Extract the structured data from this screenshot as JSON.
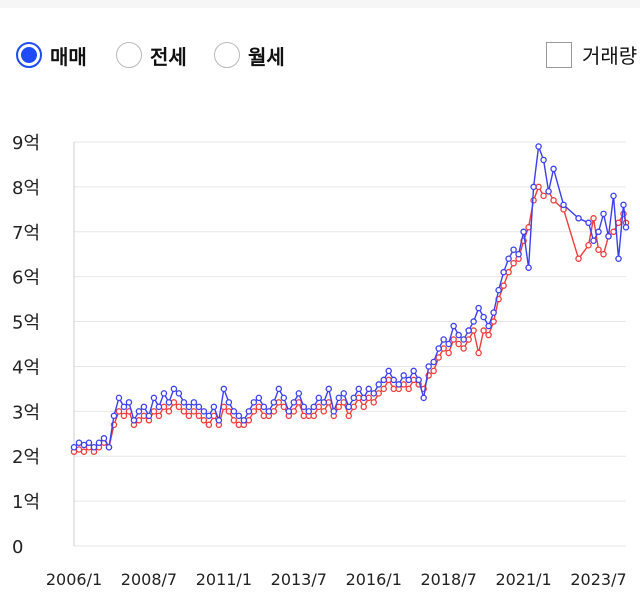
{
  "controls": {
    "radios": [
      {
        "label": "매매",
        "checked": true
      },
      {
        "label": "전세",
        "checked": false
      },
      {
        "label": "월세",
        "checked": false
      }
    ],
    "checkbox": {
      "label": "거래량",
      "checked": false
    }
  },
  "colors": {
    "accent": "#1e4bf5",
    "series_blue": "#3b3ff0",
    "series_red": "#f03b3b",
    "grid": "#e6e6e6"
  },
  "chart_data": {
    "type": "line",
    "y_ticks": [
      "0",
      "1억",
      "2억",
      "3억",
      "4억",
      "5억",
      "6억",
      "7억",
      "8억",
      "9억"
    ],
    "x_ticks": [
      "2006/1",
      "2008/7",
      "2011/1",
      "2013/7",
      "2016/1",
      "2018/7",
      "2021/1",
      "2023/7"
    ],
    "ylim": [
      0,
      9
    ],
    "xlim": [
      "2006/1",
      "2024/6"
    ],
    "grid": true,
    "series": [
      {
        "color": "#3b3ff0",
        "points": [
          [
            "2006/1",
            2.2
          ],
          [
            "2006/3",
            2.3
          ],
          [
            "2006/5",
            2.25
          ],
          [
            "2006/7",
            2.3
          ],
          [
            "2006/9",
            2.2
          ],
          [
            "2006/11",
            2.3
          ],
          [
            "2007/1",
            2.4
          ],
          [
            "2007/3",
            2.2
          ],
          [
            "2007/5",
            2.9
          ],
          [
            "2007/7",
            3.3
          ],
          [
            "2007/9",
            3.1
          ],
          [
            "2007/11",
            3.2
          ],
          [
            "2008/1",
            2.8
          ],
          [
            "2008/3",
            3.0
          ],
          [
            "2008/5",
            3.1
          ],
          [
            "2008/7",
            2.9
          ],
          [
            "2008/9",
            3.3
          ],
          [
            "2008/11",
            3.1
          ],
          [
            "2009/1",
            3.4
          ],
          [
            "2009/3",
            3.2
          ],
          [
            "2009/5",
            3.5
          ],
          [
            "2009/7",
            3.4
          ],
          [
            "2009/9",
            3.2
          ],
          [
            "2009/11",
            3.1
          ],
          [
            "2010/1",
            3.2
          ],
          [
            "2010/3",
            3.1
          ],
          [
            "2010/5",
            3.0
          ],
          [
            "2010/7",
            2.9
          ],
          [
            "2010/9",
            3.1
          ],
          [
            "2010/11",
            2.8
          ],
          [
            "2011/1",
            3.5
          ],
          [
            "2011/3",
            3.2
          ],
          [
            "2011/5",
            3.0
          ],
          [
            "2011/7",
            2.9
          ],
          [
            "2011/9",
            2.8
          ],
          [
            "2011/11",
            3.0
          ],
          [
            "2012/1",
            3.2
          ],
          [
            "2012/3",
            3.3
          ],
          [
            "2012/5",
            3.1
          ],
          [
            "2012/7",
            3.0
          ],
          [
            "2012/9",
            3.2
          ],
          [
            "2012/11",
            3.5
          ],
          [
            "2013/1",
            3.3
          ],
          [
            "2013/3",
            3.0
          ],
          [
            "2013/5",
            3.2
          ],
          [
            "2013/7",
            3.4
          ],
          [
            "2013/9",
            3.1
          ],
          [
            "2013/11",
            3.0
          ],
          [
            "2014/1",
            3.1
          ],
          [
            "2014/3",
            3.3
          ],
          [
            "2014/5",
            3.2
          ],
          [
            "2014/7",
            3.5
          ],
          [
            "2014/9",
            3.0
          ],
          [
            "2014/11",
            3.3
          ],
          [
            "2015/1",
            3.4
          ],
          [
            "2015/3",
            3.1
          ],
          [
            "2015/5",
            3.3
          ],
          [
            "2015/7",
            3.5
          ],
          [
            "2015/9",
            3.3
          ],
          [
            "2015/11",
            3.5
          ],
          [
            "2016/1",
            3.4
          ],
          [
            "2016/3",
            3.6
          ],
          [
            "2016/5",
            3.7
          ],
          [
            "2016/7",
            3.9
          ],
          [
            "2016/9",
            3.7
          ],
          [
            "2016/11",
            3.6
          ],
          [
            "2017/1",
            3.8
          ],
          [
            "2017/3",
            3.7
          ],
          [
            "2017/5",
            3.9
          ],
          [
            "2017/7",
            3.7
          ],
          [
            "2017/9",
            3.3
          ],
          [
            "2017/11",
            4.0
          ],
          [
            "2018/1",
            4.1
          ],
          [
            "2018/3",
            4.4
          ],
          [
            "2018/5",
            4.6
          ],
          [
            "2018/7",
            4.5
          ],
          [
            "2018/9",
            4.9
          ],
          [
            "2018/11",
            4.7
          ],
          [
            "2019/1",
            4.6
          ],
          [
            "2019/3",
            4.8
          ],
          [
            "2019/5",
            5.0
          ],
          [
            "2019/7",
            5.3
          ],
          [
            "2019/9",
            5.1
          ],
          [
            "2019/11",
            4.9
          ],
          [
            "2020/1",
            5.2
          ],
          [
            "2020/3",
            5.7
          ],
          [
            "2020/5",
            6.1
          ],
          [
            "2020/7",
            6.4
          ],
          [
            "2020/9",
            6.6
          ],
          [
            "2020/11",
            6.5
          ],
          [
            "2021/1",
            7.0
          ],
          [
            "2021/3",
            6.2
          ],
          [
            "2021/5",
            8.0
          ],
          [
            "2021/7",
            8.9
          ],
          [
            "2021/9",
            8.6
          ],
          [
            "2021/11",
            7.9
          ],
          [
            "2022/1",
            8.4
          ],
          [
            "2022/5",
            7.6
          ],
          [
            "2022/11",
            7.3
          ],
          [
            "2023/3",
            7.2
          ],
          [
            "2023/5",
            6.8
          ],
          [
            "2023/7",
            7.0
          ],
          [
            "2023/9",
            7.4
          ],
          [
            "2023/11",
            6.9
          ],
          [
            "2024/1",
            7.8
          ],
          [
            "2024/3",
            6.4
          ],
          [
            "2024/5",
            7.6
          ],
          [
            "2024/6",
            7.1
          ]
        ]
      },
      {
        "color": "#f03b3b",
        "points": [
          [
            "2006/1",
            2.1
          ],
          [
            "2006/3",
            2.15
          ],
          [
            "2006/5",
            2.1
          ],
          [
            "2006/7",
            2.2
          ],
          [
            "2006/9",
            2.1
          ],
          [
            "2006/11",
            2.2
          ],
          [
            "2007/1",
            2.3
          ],
          [
            "2007/3",
            2.2
          ],
          [
            "2007/5",
            2.7
          ],
          [
            "2007/7",
            3.0
          ],
          [
            "2007/9",
            2.9
          ],
          [
            "2007/11",
            3.0
          ],
          [
            "2008/1",
            2.7
          ],
          [
            "2008/3",
            2.8
          ],
          [
            "2008/5",
            2.9
          ],
          [
            "2008/7",
            2.8
          ],
          [
            "2008/9",
            3.0
          ],
          [
            "2008/11",
            2.9
          ],
          [
            "2009/1",
            3.1
          ],
          [
            "2009/3",
            3.0
          ],
          [
            "2009/5",
            3.2
          ],
          [
            "2009/7",
            3.1
          ],
          [
            "2009/9",
            3.0
          ],
          [
            "2009/11",
            2.9
          ],
          [
            "2010/1",
            3.0
          ],
          [
            "2010/3",
            2.9
          ],
          [
            "2010/5",
            2.8
          ],
          [
            "2010/7",
            2.7
          ],
          [
            "2010/9",
            2.9
          ],
          [
            "2010/11",
            2.7
          ],
          [
            "2011/1",
            3.1
          ],
          [
            "2011/3",
            3.0
          ],
          [
            "2011/5",
            2.8
          ],
          [
            "2011/7",
            2.7
          ],
          [
            "2011/9",
            2.7
          ],
          [
            "2011/11",
            2.8
          ],
          [
            "2012/1",
            3.0
          ],
          [
            "2012/3",
            3.1
          ],
          [
            "2012/5",
            2.9
          ],
          [
            "2012/7",
            2.9
          ],
          [
            "2012/9",
            3.0
          ],
          [
            "2012/11",
            3.2
          ],
          [
            "2013/1",
            3.1
          ],
          [
            "2013/3",
            2.9
          ],
          [
            "2013/5",
            3.0
          ],
          [
            "2013/7",
            3.2
          ],
          [
            "2013/9",
            2.9
          ],
          [
            "2013/11",
            2.9
          ],
          [
            "2014/1",
            2.9
          ],
          [
            "2014/3",
            3.1
          ],
          [
            "2014/5",
            3.0
          ],
          [
            "2014/7",
            3.2
          ],
          [
            "2014/9",
            2.9
          ],
          [
            "2014/11",
            3.1
          ],
          [
            "2015/1",
            3.2
          ],
          [
            "2015/3",
            2.9
          ],
          [
            "2015/5",
            3.1
          ],
          [
            "2015/7",
            3.3
          ],
          [
            "2015/9",
            3.1
          ],
          [
            "2015/11",
            3.3
          ],
          [
            "2016/1",
            3.2
          ],
          [
            "2016/3",
            3.4
          ],
          [
            "2016/5",
            3.5
          ],
          [
            "2016/7",
            3.7
          ],
          [
            "2016/9",
            3.5
          ],
          [
            "2016/11",
            3.5
          ],
          [
            "2017/1",
            3.6
          ],
          [
            "2017/3",
            3.5
          ],
          [
            "2017/5",
            3.7
          ],
          [
            "2017/7",
            3.6
          ],
          [
            "2017/9",
            3.5
          ],
          [
            "2017/11",
            3.8
          ],
          [
            "2018/1",
            3.9
          ],
          [
            "2018/3",
            4.2
          ],
          [
            "2018/5",
            4.4
          ],
          [
            "2018/7",
            4.3
          ],
          [
            "2018/9",
            4.6
          ],
          [
            "2018/11",
            4.5
          ],
          [
            "2019/1",
            4.4
          ],
          [
            "2019/3",
            4.6
          ],
          [
            "2019/5",
            4.8
          ],
          [
            "2019/7",
            4.3
          ],
          [
            "2019/9",
            4.8
          ],
          [
            "2019/11",
            4.7
          ],
          [
            "2020/1",
            5.0
          ],
          [
            "2020/3",
            5.5
          ],
          [
            "2020/5",
            5.8
          ],
          [
            "2020/7",
            6.1
          ],
          [
            "2020/9",
            6.3
          ],
          [
            "2020/11",
            6.4
          ],
          [
            "2021/1",
            6.8
          ],
          [
            "2021/3",
            7.1
          ],
          [
            "2021/5",
            7.7
          ],
          [
            "2021/7",
            8.0
          ],
          [
            "2021/9",
            7.8
          ],
          [
            "2021/11",
            7.9
          ],
          [
            "2022/1",
            7.7
          ],
          [
            "2022/5",
            7.5
          ],
          [
            "2022/11",
            6.4
          ],
          [
            "2023/3",
            6.7
          ],
          [
            "2023/5",
            7.3
          ],
          [
            "2023/7",
            6.6
          ],
          [
            "2023/9",
            6.5
          ],
          [
            "2023/11",
            6.9
          ],
          [
            "2024/1",
            7.0
          ],
          [
            "2024/3",
            7.2
          ],
          [
            "2024/5",
            7.4
          ],
          [
            "2024/6",
            7.2
          ]
        ]
      }
    ]
  }
}
